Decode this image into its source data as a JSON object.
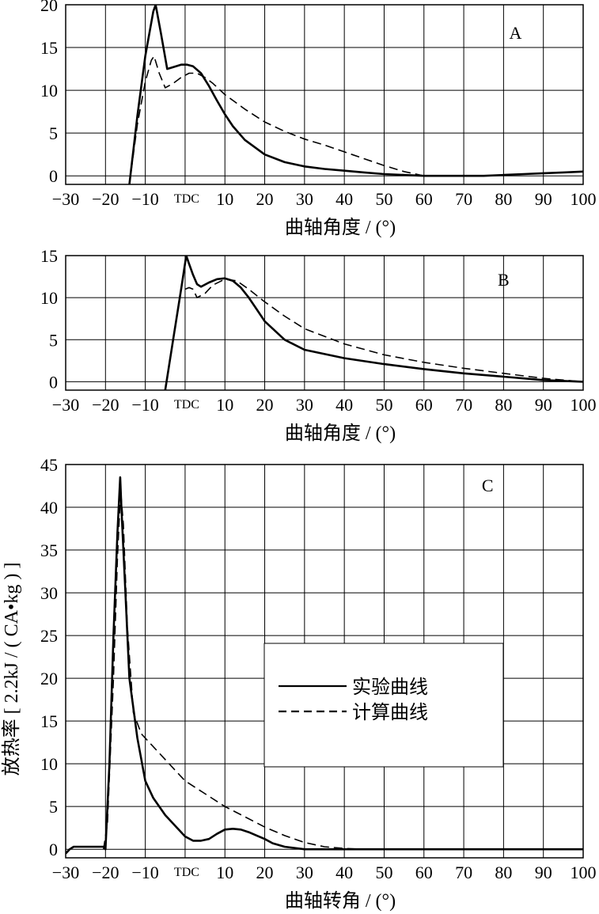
{
  "chart_data": [
    {
      "type": "line",
      "panel_label": "A",
      "xlabel": "曲轴角度 / (°)",
      "ylabel": "",
      "x_ticks": [
        "−30",
        "−20",
        "−10",
        "TDC",
        "10",
        "20",
        "30",
        "40",
        "50",
        "60",
        "70",
        "80",
        "90",
        "100"
      ],
      "y_ticks": [
        "0",
        "5",
        "10",
        "15",
        "20"
      ],
      "xlim": [
        -30,
        100
      ],
      "ylim": [
        -1,
        20
      ],
      "grid": true,
      "series": [
        {
          "style": "solid",
          "x": [
            -14,
            -12,
            -10,
            -8,
            -7.4,
            -6,
            -4.5,
            -3,
            -1,
            0.5,
            2,
            4,
            6,
            8,
            10,
            12,
            15,
            20,
            25,
            30,
            35,
            40,
            45,
            50,
            55,
            60,
            65,
            70,
            75,
            80,
            85,
            90,
            95,
            100
          ],
          "y": [
            -1,
            7,
            14,
            19.2,
            20,
            16.5,
            12.5,
            12.7,
            13,
            13,
            12.8,
            12,
            10.5,
            8.8,
            7.2,
            5.8,
            4.2,
            2.5,
            1.6,
            1.1,
            0.8,
            0.6,
            0.4,
            0.2,
            0.1,
            0,
            0,
            0,
            0,
            0.1,
            0.2,
            0.3,
            0.4,
            0.5
          ]
        },
        {
          "style": "dashed",
          "x": [
            -14,
            -12,
            -10,
            -8.5,
            -7.8,
            -6.5,
            -5,
            -3,
            -1,
            1,
            3,
            5,
            7,
            10,
            15,
            20,
            25,
            30,
            35,
            40,
            45,
            50,
            55,
            58,
            60
          ],
          "y": [
            -1,
            6,
            11,
            13.5,
            14,
            12,
            10.3,
            10.8,
            11.5,
            12,
            12,
            11.5,
            10.8,
            9.5,
            7.8,
            6.3,
            5.2,
            4.3,
            3.6,
            2.8,
            2,
            1.2,
            0.5,
            0.2,
            0
          ]
        }
      ]
    },
    {
      "type": "line",
      "panel_label": "B",
      "xlabel": "曲轴角度 / (°)",
      "ylabel": "",
      "x_ticks": [
        "−30",
        "−20",
        "−10",
        "TDC",
        "10",
        "20",
        "30",
        "40",
        "50",
        "60",
        "70",
        "80",
        "90",
        "100"
      ],
      "y_ticks": [
        "0",
        "5",
        "10",
        "15"
      ],
      "xlim": [
        -30,
        100
      ],
      "ylim": [
        -1,
        15
      ],
      "grid": true,
      "series": [
        {
          "style": "solid",
          "x": [
            -5,
            -3,
            -1,
            0.3,
            1,
            2,
            3,
            4,
            6,
            8,
            10,
            12,
            14,
            16,
            18,
            20,
            25,
            30,
            40,
            50,
            60,
            70,
            80,
            90,
            100
          ],
          "y": [
            -1,
            5,
            11,
            15,
            14,
            12.7,
            11.6,
            11.3,
            11.8,
            12.2,
            12.3,
            12,
            11.2,
            10,
            8.6,
            7.2,
            5,
            3.8,
            2.8,
            2.1,
            1.5,
            1,
            0.6,
            0.2,
            0
          ]
        },
        {
          "style": "dashed",
          "x": [
            0,
            1,
            2,
            3,
            5,
            7,
            10,
            13,
            16,
            20,
            25,
            30,
            40,
            50,
            60,
            70,
            80,
            90,
            100
          ],
          "y": [
            11,
            11.2,
            11,
            10,
            10.5,
            11.5,
            12.2,
            12,
            11,
            9.5,
            7.8,
            6.3,
            4.5,
            3.2,
            2.3,
            1.6,
            1,
            0.4,
            0
          ]
        }
      ]
    },
    {
      "type": "line",
      "panel_label": "C",
      "xlabel": "曲轴转角 / (°)",
      "ylabel": "放热率 [ 2.2kJ / ( CA•kg ) ]",
      "x_ticks": [
        "−30",
        "−20",
        "−10",
        "TDC",
        "10",
        "20",
        "30",
        "40",
        "50",
        "60",
        "70",
        "80",
        "90",
        "100"
      ],
      "y_ticks": [
        "0",
        "5",
        "10",
        "15",
        "20",
        "25",
        "30",
        "35",
        "40",
        "45"
      ],
      "xlim": [
        -30,
        100
      ],
      "ylim": [
        -1,
        45
      ],
      "grid": true,
      "legend": {
        "position": "center-right",
        "entries": [
          {
            "label": "实验曲线",
            "style": "solid"
          },
          {
            "label": "计算曲线",
            "style": "dashed"
          }
        ]
      },
      "series": [
        {
          "name": "实验曲线",
          "style": "solid",
          "x": [
            -30,
            -29,
            -28,
            -26,
            -22,
            -20.5,
            -20,
            -19,
            -18,
            -17,
            -16.3,
            -16,
            -15,
            -14,
            -12,
            -10,
            -8,
            -5,
            -2,
            0,
            2,
            4,
            6,
            8,
            10,
            12,
            14,
            16,
            18,
            20,
            22,
            25,
            30,
            40,
            60,
            80,
            100
          ],
          "y": [
            -0.5,
            0,
            0.3,
            0.3,
            0.3,
            0.3,
            0,
            10,
            25,
            37,
            43.5,
            40,
            30,
            20,
            13,
            8,
            6,
            4,
            2.5,
            1.5,
            1,
            1,
            1.2,
            1.8,
            2.3,
            2.4,
            2.3,
            2,
            1.6,
            1.2,
            0.7,
            0.3,
            0,
            0,
            0,
            0,
            0
          ]
        },
        {
          "name": "计算曲线",
          "style": "dashed",
          "x": [
            -20.5,
            -19.5,
            -18,
            -17,
            -16.2,
            -15.5,
            -14.5,
            -13,
            -11,
            -9,
            -6,
            -3,
            0,
            5,
            10,
            15,
            20,
            25,
            30,
            35,
            40,
            45
          ],
          "y": [
            0,
            3,
            20,
            34,
            42,
            38,
            26,
            16,
            13.5,
            12.5,
            11,
            9.5,
            8,
            6.5,
            5,
            3.8,
            2.6,
            1.6,
            0.8,
            0.3,
            0.1,
            0
          ]
        }
      ]
    }
  ]
}
